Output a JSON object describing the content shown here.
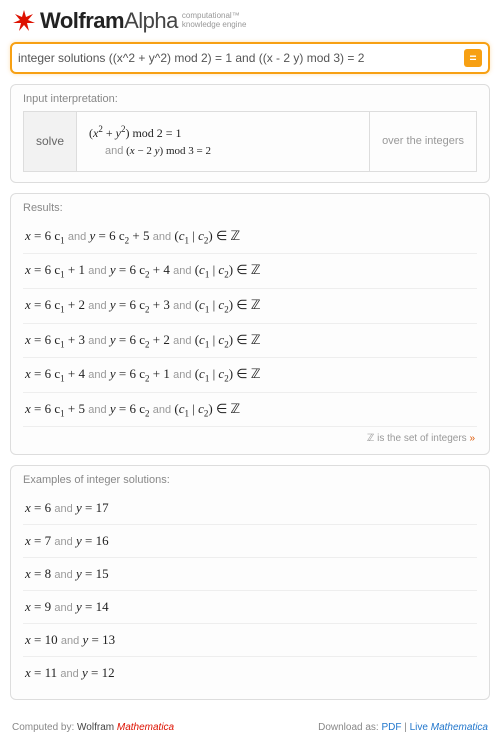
{
  "brand": {
    "wolfram": "Wolfram",
    "alpha": "Alpha",
    "tagline1": "computational",
    "tm": "™",
    "tagline2": "knowledge engine"
  },
  "query": "integer solutions ((x^2 + y^2) mod 2) = 1 and ((x - 2 y) mod 3) = 2",
  "pods": {
    "interp": {
      "title": "Input interpretation:",
      "solve": "solve",
      "line1": "(x² + y²) mod 2 = 1",
      "line2_and": "and",
      "line2_rest": "(x − 2 y) mod 3 = 2",
      "over": "over the integers"
    },
    "results": {
      "title": "Results:",
      "rows": [
        {
          "x_c": "6 c",
          "x_off": "",
          "y_c": "6 c",
          "y_off": " + 5"
        },
        {
          "x_c": "6 c",
          "x_off": " + 1",
          "y_c": "6 c",
          "y_off": " + 4"
        },
        {
          "x_c": "6 c",
          "x_off": " + 2",
          "y_c": "6 c",
          "y_off": " + 3"
        },
        {
          "x_c": "6 c",
          "x_off": " + 3",
          "y_c": "6 c",
          "y_off": " + 2"
        },
        {
          "x_c": "6 c",
          "x_off": " + 4",
          "y_c": "6 c",
          "y_off": " + 1"
        },
        {
          "x_c": "6 c",
          "x_off": " + 5",
          "y_c": "6 c",
          "y_off": ""
        }
      ],
      "note_pre": "ℤ",
      "note_text": " is the set of integers ",
      "note_raq": "»"
    },
    "examples": {
      "title": "Examples of integer solutions:",
      "rows": [
        {
          "x": "6",
          "y": "17"
        },
        {
          "x": "7",
          "y": "16"
        },
        {
          "x": "8",
          "y": "15"
        },
        {
          "x": "9",
          "y": "14"
        },
        {
          "x": "10",
          "y": "13"
        },
        {
          "x": "11",
          "y": "12"
        }
      ]
    }
  },
  "footer": {
    "computed": "Computed by: ",
    "wolfram": "Wolfram ",
    "mathematica": "Mathematica",
    "download": "Download as: ",
    "pdf": "PDF",
    "sep": " | ",
    "live": "Live ",
    "mathematica2": "Mathematica"
  },
  "colors": {
    "accent": "#f7a013",
    "brand": "#dd1100"
  }
}
